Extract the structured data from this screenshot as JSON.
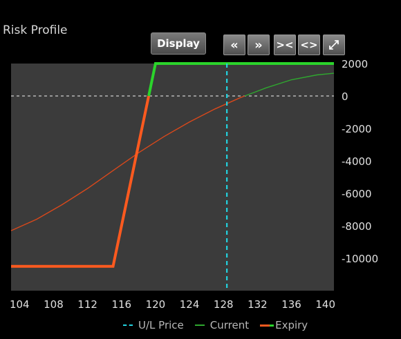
{
  "panel": {
    "title": "Risk Profile"
  },
  "toolbar": {
    "display_label": "Display",
    "buttons": [
      {
        "icon": "double-chevron-left-icon",
        "glyph": "«"
      },
      {
        "icon": "double-chevron-right-icon",
        "glyph": "»"
      },
      {
        "icon": "collapse-arrows-icon",
        "glyph": "><"
      },
      {
        "icon": "expand-arrows-icon",
        "glyph": "<>"
      },
      {
        "icon": "fullscreen-icon",
        "glyph": "⤢"
      }
    ]
  },
  "colors": {
    "plot_bg": "#3b3b3b",
    "ul_price": "#22d3e0",
    "current": "#d9481b",
    "current_positive": "#2fa82f",
    "expiry_loss": "#ff5a1f",
    "expiry_profit": "#2bd42b",
    "zero_line": "#cfcfcf"
  },
  "chart_data": {
    "type": "line",
    "title": "Risk Profile",
    "xlim": [
      103,
      141
    ],
    "ylim": [
      -12000,
      2000
    ],
    "x_ticks": [
      104,
      108,
      112,
      116,
      120,
      124,
      128,
      132,
      136,
      140
    ],
    "y_ticks": [
      2000,
      0,
      -2000,
      -4000,
      -6000,
      -8000,
      -10000
    ],
    "ul_price": 128.4,
    "series": [
      {
        "name": "Current",
        "x": [
          103,
          106,
          109,
          112,
          115,
          118,
          121,
          124,
          127,
          130,
          133,
          136,
          139,
          141
        ],
        "y": [
          -8300,
          -7600,
          -6700,
          -5700,
          -4600,
          -3500,
          -2500,
          -1600,
          -800,
          -100,
          500,
          1000,
          1300,
          1400
        ]
      },
      {
        "name": "Expiry",
        "x": [
          103,
          115,
          120,
          141
        ],
        "y": [
          -10500,
          -10500,
          2000,
          2000
        ]
      }
    ],
    "legend": [
      "U/L Price",
      "Current",
      "Expiry"
    ],
    "legend_position": "bottom-right"
  }
}
